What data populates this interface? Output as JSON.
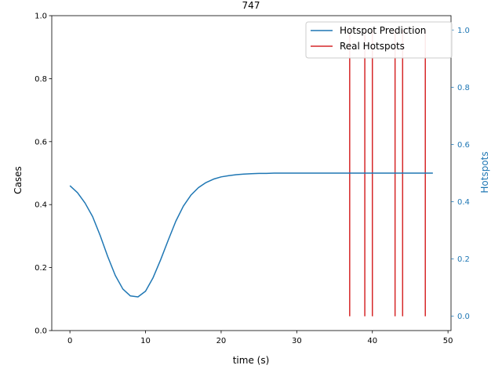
{
  "chart_data": {
    "type": "line",
    "title": "747",
    "xlabel": "time (s)",
    "ylabel": "Cases",
    "y2label": "Hotspots",
    "xlim": [
      -2.4,
      50.4
    ],
    "ylim": [
      0,
      1
    ],
    "y2lim": [
      -0.05,
      1.05
    ],
    "x_ticks": [
      0,
      10,
      20,
      30,
      40,
      50
    ],
    "y_ticks": [
      0.0,
      0.2,
      0.4,
      0.6,
      0.8,
      1.0
    ],
    "y2_ticks": [
      0.0,
      0.2,
      0.4,
      0.6,
      0.8,
      1.0
    ],
    "grid": false,
    "legend": "top-right",
    "colors": {
      "prediction": "#1f77b4",
      "hotspots": "#d62728",
      "right_axis": "#1f77b4"
    },
    "series": [
      {
        "name": "Hotspot Prediction",
        "axis": "left",
        "x": [
          0,
          1,
          2,
          3,
          4,
          5,
          6,
          7,
          8,
          9,
          10,
          11,
          12,
          13,
          14,
          15,
          16,
          17,
          18,
          19,
          20,
          21,
          22,
          23,
          24,
          25,
          26,
          27,
          28,
          29,
          30,
          31,
          32,
          33,
          34,
          35,
          36,
          37,
          38,
          39,
          40,
          41,
          42,
          43,
          44,
          45,
          46,
          47,
          48
        ],
        "values": [
          0.46,
          0.438,
          0.405,
          0.362,
          0.302,
          0.235,
          0.175,
          0.132,
          0.11,
          0.107,
          0.125,
          0.168,
          0.225,
          0.287,
          0.347,
          0.395,
          0.43,
          0.454,
          0.47,
          0.481,
          0.488,
          0.492,
          0.495,
          0.497,
          0.498,
          0.499,
          0.499,
          0.5,
          0.5,
          0.5,
          0.5,
          0.5,
          0.5,
          0.5,
          0.5,
          0.5,
          0.5,
          0.5,
          0.5,
          0.5,
          0.5,
          0.5,
          0.5,
          0.5,
          0.5,
          0.5,
          0.5,
          0.5,
          0.5
        ]
      },
      {
        "name": "Real Hotspots",
        "axis": "right",
        "type": "vlines",
        "x": [
          37,
          39,
          40,
          43,
          44,
          47
        ],
        "ymin": 0,
        "ymax": 1
      }
    ]
  }
}
